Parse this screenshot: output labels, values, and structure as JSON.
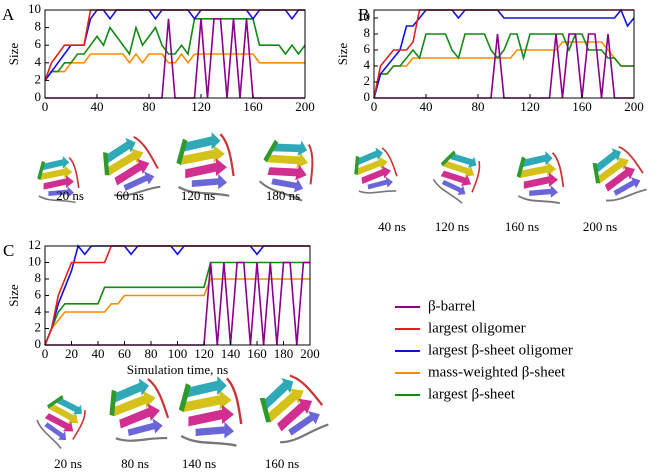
{
  "chart_data": [
    {
      "type": "line",
      "panel": "A",
      "ylabel": "Size",
      "xlim": [
        0,
        200
      ],
      "xticks": [
        0,
        40,
        80,
        120,
        160,
        200
      ],
      "ylim": [
        0,
        10
      ],
      "yticks": [
        0,
        2,
        4,
        6,
        8,
        10
      ],
      "x": [
        0,
        5,
        10,
        15,
        20,
        25,
        30,
        35,
        40,
        45,
        50,
        55,
        60,
        65,
        70,
        75,
        80,
        85,
        90,
        95,
        100,
        105,
        110,
        115,
        120,
        125,
        130,
        135,
        140,
        145,
        150,
        155,
        160,
        165,
        170,
        175,
        180,
        185,
        190,
        195,
        200
      ],
      "series": [
        {
          "color": "#ff8c00",
          "values": [
            2,
            3,
            3,
            3,
            4,
            4,
            4,
            5,
            5,
            5,
            5,
            5,
            5,
            4,
            5,
            4,
            5,
            5,
            5,
            4,
            4,
            5,
            4,
            5,
            5,
            5,
            5,
            5,
            5,
            5,
            5,
            5,
            5,
            4,
            4,
            4,
            4,
            4,
            4,
            4,
            4
          ]
        },
        {
          "color": "#128a12",
          "values": [
            2,
            3,
            3,
            4,
            4,
            5,
            5,
            6,
            7,
            6,
            8,
            7,
            6,
            5,
            8,
            6,
            7,
            8,
            6,
            5,
            5,
            6,
            5,
            9,
            9,
            9,
            9,
            9,
            9,
            9,
            9,
            9,
            9,
            6,
            6,
            6,
            6,
            5,
            6,
            5,
            6
          ]
        },
        {
          "color": "#1010e0",
          "values": [
            2,
            3,
            4,
            5,
            6,
            6,
            6,
            9,
            10,
            10,
            9,
            10,
            10,
            10,
            10,
            10,
            10,
            9,
            10,
            10,
            10,
            10,
            10,
            9,
            10,
            10,
            10,
            10,
            10,
            10,
            10,
            10,
            9,
            10,
            10,
            10,
            10,
            10,
            9,
            10,
            10
          ]
        },
        {
          "color": "#e02020",
          "values": [
            2,
            4,
            5,
            6,
            6,
            6,
            6,
            10,
            10,
            10,
            10,
            10,
            10,
            10,
            10,
            10,
            10,
            10,
            10,
            10,
            10,
            10,
            10,
            10,
            10,
            10,
            10,
            10,
            10,
            10,
            10,
            10,
            10,
            10,
            10,
            10,
            10,
            10,
            10,
            10,
            10
          ]
        },
        {
          "color": "#8b008b",
          "values": [
            0,
            0,
            0,
            0,
            0,
            0,
            0,
            0,
            0,
            0,
            0,
            0,
            0,
            0,
            0,
            0,
            0,
            0,
            0,
            9,
            0,
            0,
            0,
            0,
            9,
            0,
            9,
            9,
            0,
            9,
            0,
            9,
            0,
            0,
            0,
            0,
            0,
            0,
            0,
            0,
            0
          ]
        }
      ]
    },
    {
      "type": "line",
      "panel": "B",
      "ylabel": "Size",
      "xlim": [
        0,
        200
      ],
      "xticks": [
        0,
        40,
        80,
        120,
        160,
        200
      ],
      "ylim": [
        0,
        11
      ],
      "yticks": [
        0,
        2,
        4,
        6,
        8,
        10
      ],
      "x": [
        0,
        5,
        10,
        15,
        20,
        25,
        30,
        35,
        40,
        45,
        50,
        55,
        60,
        65,
        70,
        75,
        80,
        85,
        90,
        95,
        100,
        105,
        110,
        115,
        120,
        125,
        130,
        135,
        140,
        145,
        150,
        155,
        160,
        165,
        170,
        175,
        180,
        185,
        190,
        195,
        200
      ],
      "series": [
        {
          "color": "#ff8c00",
          "values": [
            0,
            3,
            3,
            4,
            4,
            4,
            5,
            5,
            5,
            5,
            5,
            5,
            5,
            5,
            5,
            5,
            5,
            5,
            5,
            5,
            5,
            5,
            6,
            6,
            6,
            6,
            6,
            6,
            6,
            7,
            7,
            7,
            7,
            7,
            7,
            7,
            6,
            5,
            4,
            4,
            4
          ]
        },
        {
          "color": "#128a12",
          "values": [
            0,
            3,
            3,
            4,
            4,
            5,
            6,
            5,
            8,
            8,
            8,
            8,
            6,
            5,
            8,
            8,
            8,
            8,
            6,
            5,
            6,
            8,
            8,
            5,
            8,
            8,
            8,
            8,
            8,
            8,
            6,
            8,
            8,
            6,
            6,
            6,
            5,
            5,
            4,
            4,
            4
          ]
        },
        {
          "color": "#1010e0",
          "values": [
            0,
            3,
            4,
            5,
            6,
            9,
            9,
            10,
            11,
            11,
            11,
            11,
            11,
            10,
            11,
            11,
            11,
            11,
            11,
            11,
            10,
            10,
            10,
            10,
            10,
            10,
            10,
            10,
            10,
            10,
            10,
            10,
            10,
            10,
            10,
            10,
            10,
            10,
            11,
            9,
            10
          ]
        },
        {
          "color": "#e02020",
          "values": [
            0,
            4,
            5,
            6,
            6,
            6,
            7,
            11,
            11,
            11,
            11,
            11,
            11,
            11,
            11,
            11,
            11,
            11,
            11,
            11,
            11,
            11,
            11,
            11,
            11,
            11,
            11,
            11,
            11,
            11,
            11,
            11,
            11,
            11,
            11,
            11,
            11,
            11,
            11,
            11,
            11
          ]
        },
        {
          "color": "#8b008b",
          "values": [
            0,
            0,
            0,
            0,
            0,
            0,
            0,
            0,
            0,
            0,
            0,
            0,
            0,
            0,
            0,
            0,
            0,
            0,
            0,
            8,
            0,
            0,
            0,
            0,
            0,
            0,
            0,
            0,
            8,
            0,
            8,
            8,
            0,
            8,
            8,
            0,
            8,
            0,
            0,
            0,
            0
          ]
        }
      ]
    },
    {
      "type": "line",
      "panel": "C",
      "ylabel": "Size",
      "xlabel": "Simulation time, ns",
      "xlim": [
        0,
        200
      ],
      "xticks": [
        0,
        20,
        40,
        60,
        80,
        100,
        120,
        140,
        160,
        180,
        200
      ],
      "ylim": [
        0,
        12
      ],
      "yticks": [
        0,
        2,
        4,
        6,
        8,
        10,
        12
      ],
      "x": [
        0,
        5,
        10,
        15,
        20,
        25,
        30,
        35,
        40,
        45,
        50,
        55,
        60,
        65,
        70,
        75,
        80,
        85,
        90,
        95,
        100,
        105,
        110,
        115,
        120,
        125,
        130,
        135,
        140,
        145,
        150,
        155,
        160,
        165,
        170,
        175,
        180,
        185,
        190,
        195,
        200
      ],
      "series": [
        {
          "name": "mass-weighted β-sheet",
          "color": "#ff8c00",
          "values": [
            0,
            2,
            3,
            4,
            4,
            4,
            4,
            4,
            4,
            4,
            5,
            5,
            6,
            6,
            6,
            6,
            6,
            6,
            6,
            6,
            6,
            6,
            6,
            6,
            6,
            8,
            8,
            8,
            8,
            8,
            8,
            8,
            8,
            8,
            8,
            8,
            8,
            8,
            8,
            8,
            8
          ]
        },
        {
          "name": "largest β-sheet",
          "color": "#128a12",
          "values": [
            0,
            2,
            4,
            5,
            5,
            5,
            5,
            5,
            5,
            7,
            7,
            7,
            7,
            7,
            7,
            7,
            7,
            7,
            7,
            7,
            7,
            7,
            7,
            7,
            7,
            10,
            10,
            10,
            10,
            10,
            10,
            10,
            10,
            10,
            10,
            10,
            10,
            10,
            10,
            10,
            10
          ]
        },
        {
          "name": "largest β-sheet oligomer",
          "color": "#1010e0",
          "values": [
            0,
            2,
            5,
            7,
            9,
            12,
            11,
            12,
            12,
            12,
            12,
            12,
            12,
            11,
            12,
            12,
            12,
            12,
            12,
            12,
            11,
            12,
            12,
            12,
            12,
            12,
            12,
            12,
            12,
            12,
            12,
            12,
            11,
            12,
            12,
            12,
            12,
            12,
            12,
            12,
            12
          ]
        },
        {
          "name": "largest oligomer",
          "color": "#e02020",
          "values": [
            0,
            2,
            6,
            8,
            10,
            10,
            10,
            10,
            10,
            10,
            12,
            12,
            12,
            12,
            12,
            12,
            12,
            12,
            12,
            12,
            12,
            12,
            12,
            12,
            12,
            12,
            12,
            12,
            12,
            12,
            12,
            12,
            12,
            12,
            12,
            12,
            12,
            12,
            12,
            12,
            12
          ]
        },
        {
          "name": "β-barrel",
          "color": "#8b008b",
          "values": [
            0,
            0,
            0,
            0,
            0,
            0,
            0,
            0,
            0,
            0,
            0,
            0,
            0,
            0,
            0,
            0,
            0,
            0,
            0,
            0,
            0,
            0,
            0,
            0,
            0,
            10,
            0,
            10,
            0,
            10,
            10,
            0,
            10,
            0,
            10,
            0,
            10,
            10,
            0,
            10,
            10
          ]
        }
      ]
    }
  ],
  "snapshots": [
    [
      "20 ns",
      "60 ns",
      "120 ns",
      "180 ns"
    ],
    [
      "40 ns",
      "120 ns",
      "160 ns",
      "200 ns"
    ],
    [
      "20 ns",
      "80 ns",
      "140 ns",
      "160 ns"
    ]
  ],
  "legend_order": [
    4,
    3,
    2,
    0,
    1
  ]
}
